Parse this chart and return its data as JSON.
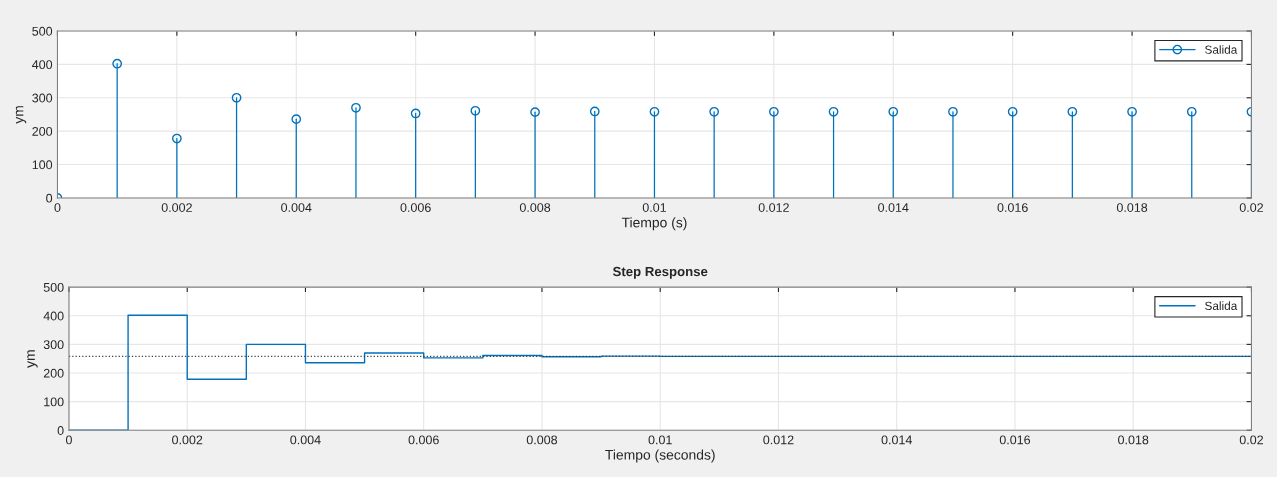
{
  "chart_data": [
    {
      "type": "lollipop",
      "xlabel": "Tiempo (s)",
      "ylabel": "ym",
      "x": [
        0,
        0.001,
        0.002,
        0.003,
        0.004,
        0.005,
        0.006,
        0.007,
        0.008,
        0.009,
        0.01,
        0.011,
        0.012,
        0.013,
        0.014,
        0.015,
        0.016,
        0.017,
        0.018,
        0.019,
        0.02
      ],
      "series": [
        {
          "name": "Salida",
          "color": "#0072bd",
          "values": [
            0,
            402,
            178,
            300,
            236,
            270,
            253,
            261,
            257,
            259,
            258,
            258,
            258,
            258,
            258,
            258,
            258,
            258,
            258,
            258,
            258
          ]
        }
      ],
      "xlim": [
        0,
        0.02
      ],
      "ylim": [
        0,
        500
      ],
      "xticks": [
        0,
        0.002,
        0.004,
        0.006,
        0.008,
        0.01,
        0.012,
        0.014,
        0.016,
        0.018,
        0.02
      ],
      "yticks": [
        0,
        100,
        200,
        300,
        400,
        500
      ],
      "grid": true,
      "legend": "top right",
      "marker": "circle"
    },
    {
      "type": "step",
      "title": "Step Response",
      "xlabel": "Tiempo (seconds)",
      "ylabel": "ym",
      "x": [
        0,
        0.001,
        0.002,
        0.003,
        0.004,
        0.005,
        0.006,
        0.007,
        0.008,
        0.009,
        0.01,
        0.011,
        0.012,
        0.013,
        0.014,
        0.015,
        0.016,
        0.017,
        0.018,
        0.019,
        0.02
      ],
      "series": [
        {
          "name": "Salida",
          "color": "#0072bd",
          "values": [
            0,
            402,
            178,
            300,
            236,
            270,
            253,
            261,
            257,
            259,
            258,
            258,
            258,
            258,
            258,
            258,
            258,
            258,
            258,
            258,
            258
          ]
        }
      ],
      "xlim": [
        0,
        0.02
      ],
      "ylim": [
        0,
        500
      ],
      "xticks": [
        0,
        0.002,
        0.004,
        0.006,
        0.008,
        0.01,
        0.012,
        0.014,
        0.016,
        0.018,
        0.02
      ],
      "yticks": [
        0,
        100,
        200,
        300,
        400,
        500
      ],
      "ref_lines": [
        {
          "axis": "y",
          "value": 258,
          "color": "#404040",
          "line_style": "dotted"
        }
      ],
      "grid": true,
      "legend": "top right"
    }
  ]
}
